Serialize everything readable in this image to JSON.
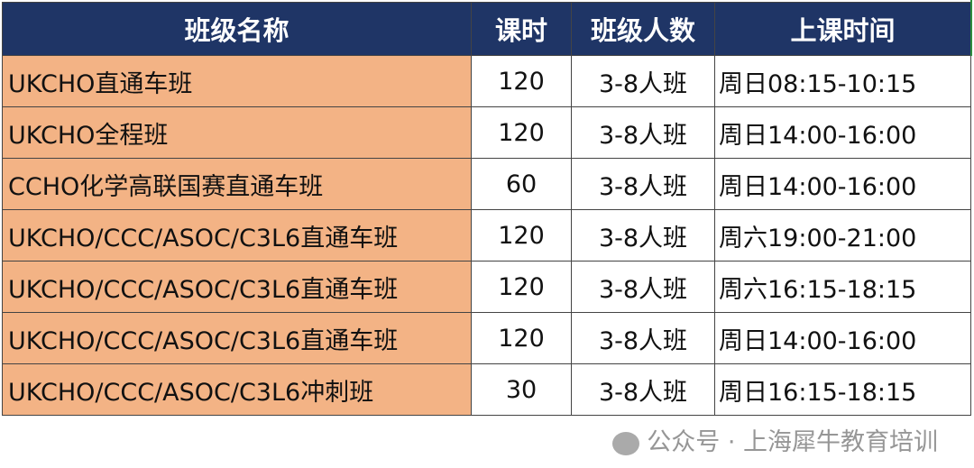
{
  "table": {
    "headers": [
      "班级名称",
      "课时",
      "班级人数",
      "上课时间"
    ],
    "rows": [
      [
        "UKCHO直通车班",
        "120",
        "3-8人班",
        "周日08:15-10:15"
      ],
      [
        "UKCHO全程班",
        "120",
        "3-8人班",
        "周日14:00-16:00"
      ],
      [
        "CCHO化学高联国赛直通车班",
        "60",
        "3-8人班",
        "周日14:00-16:00"
      ],
      [
        "UKCHO/CCC/ASOC/C3L6直通车班",
        "120",
        "3-8人班",
        "周六19:00-21:00"
      ],
      [
        "UKCHO/CCC/ASOC/C3L6直通车班",
        "120",
        "3-8人班",
        "周六16:15-18:15"
      ],
      [
        "UKCHO/CCC/ASOC/C3L6直通车班",
        "120",
        "3-8人班",
        "周日14:00-16:00"
      ],
      [
        "UKCHO/CCC/ASOC/C3L6冲刺班",
        "30",
        "3-8人班",
        "周日16:15-18:15"
      ]
    ]
  },
  "colors": {
    "header_bg": "#1f3566",
    "name_col_bg": "#f3b385"
  },
  "watermark": {
    "icon": "wechat-icon",
    "text": "公众号 · 上海犀牛教育培训"
  }
}
